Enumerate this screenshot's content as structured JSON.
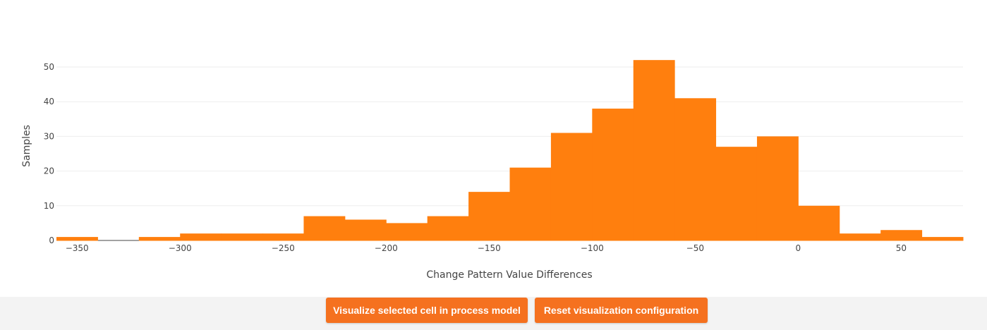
{
  "chart_data": {
    "type": "bar",
    "xlabel": "Change Pattern Value Differences",
    "ylabel": "Samples",
    "bin_width": 20,
    "bins": [
      {
        "x0": -360,
        "x1": -340,
        "count": 1
      },
      {
        "x0": -340,
        "x1": -320,
        "count": 0
      },
      {
        "x0": -320,
        "x1": -300,
        "count": 1
      },
      {
        "x0": -300,
        "x1": -280,
        "count": 2
      },
      {
        "x0": -280,
        "x1": -260,
        "count": 2
      },
      {
        "x0": -260,
        "x1": -240,
        "count": 2
      },
      {
        "x0": -240,
        "x1": -220,
        "count": 7
      },
      {
        "x0": -220,
        "x1": -200,
        "count": 6
      },
      {
        "x0": -200,
        "x1": -180,
        "count": 5
      },
      {
        "x0": -180,
        "x1": -160,
        "count": 7
      },
      {
        "x0": -160,
        "x1": -140,
        "count": 14
      },
      {
        "x0": -140,
        "x1": -120,
        "count": 21
      },
      {
        "x0": -120,
        "x1": -100,
        "count": 31
      },
      {
        "x0": -100,
        "x1": -80,
        "count": 38
      },
      {
        "x0": -80,
        "x1": -60,
        "count": 52
      },
      {
        "x0": -60,
        "x1": -40,
        "count": 41
      },
      {
        "x0": -40,
        "x1": -20,
        "count": 27
      },
      {
        "x0": -20,
        "x1": 0,
        "count": 30
      },
      {
        "x0": 0,
        "x1": 20,
        "count": 10
      },
      {
        "x0": 20,
        "x1": 40,
        "count": 2
      },
      {
        "x0": 40,
        "x1": 60,
        "count": 3
      },
      {
        "x0": 60,
        "x1": 80,
        "count": 1
      }
    ],
    "xlim": [
      -360,
      80
    ],
    "ylim": [
      0,
      55
    ],
    "x_ticks": [
      -350,
      -300,
      -250,
      -200,
      -150,
      -100,
      -50,
      0,
      50
    ],
    "x_tick_labels": [
      "−350",
      "−300",
      "−250",
      "−200",
      "−150",
      "−100",
      "−50",
      "0",
      "50"
    ],
    "y_ticks": [
      0,
      10,
      20,
      30,
      40,
      50
    ],
    "y_tick_labels": [
      "0",
      "10",
      "20",
      "30",
      "40",
      "50"
    ],
    "grid": true,
    "bar_color": "#ff7f0e",
    "grid_color": "#eeeeee",
    "legend": "none"
  },
  "footer": {
    "visualize_label": "Visualize selected cell in process model",
    "reset_label": "Reset visualization configuration",
    "button_color": "#f5711f",
    "background": "#f3f3f3"
  }
}
